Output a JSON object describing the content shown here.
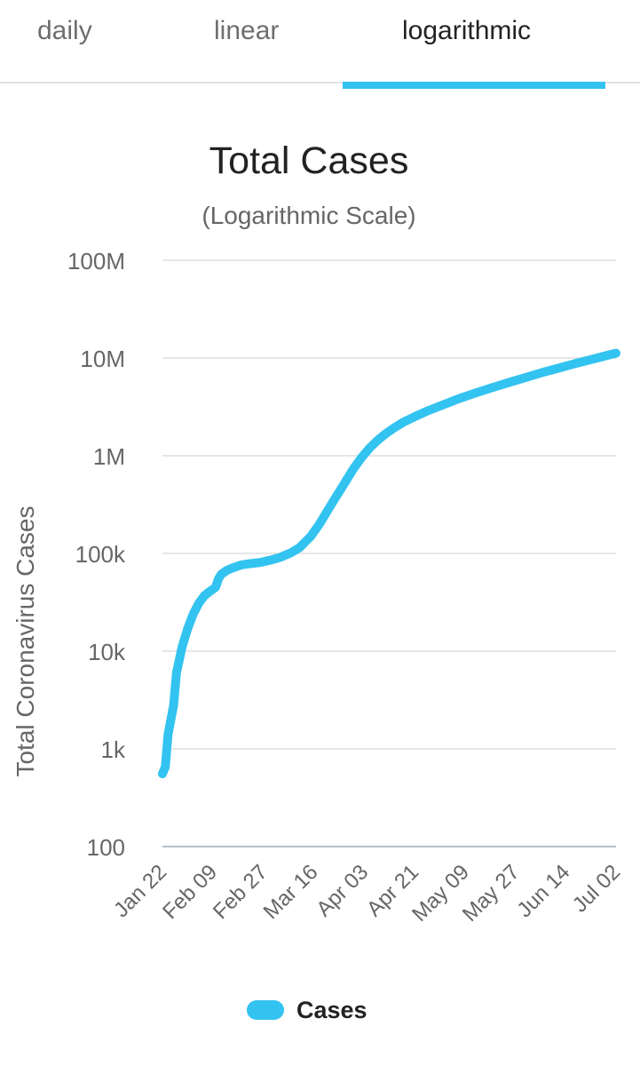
{
  "tabs": [
    {
      "label": "daily"
    },
    {
      "label": "linear"
    },
    {
      "label": "logarithmic"
    }
  ],
  "active_tab": "logarithmic",
  "colors": {
    "accent": "#33c3f0",
    "grid": "#dddddd",
    "text": "#222222",
    "muted": "#666666"
  },
  "chart_data": {
    "type": "line",
    "title": "Total Cases",
    "subtitle": "(Logarithmic Scale)",
    "ylabel": "Total Coronavirus Cases",
    "xlabel": "",
    "yscale": "log",
    "ylim": [
      100,
      100000000
    ],
    "y_ticks": [
      {
        "value": 100,
        "label": "100"
      },
      {
        "value": 1000,
        "label": "1k"
      },
      {
        "value": 10000,
        "label": "10k"
      },
      {
        "value": 100000,
        "label": "100k"
      },
      {
        "value": 1000000,
        "label": "1M"
      },
      {
        "value": 10000000,
        "label": "10M"
      },
      {
        "value": 100000000,
        "label": "100M"
      }
    ],
    "x_ticks": [
      {
        "day": 0,
        "label": "Jan 22"
      },
      {
        "day": 18,
        "label": "Feb 09"
      },
      {
        "day": 36,
        "label": "Feb 27"
      },
      {
        "day": 54,
        "label": "Mar 16"
      },
      {
        "day": 72,
        "label": "Apr 03"
      },
      {
        "day": 90,
        "label": "Apr 21"
      },
      {
        "day": 108,
        "label": "May 09"
      },
      {
        "day": 126,
        "label": "May 27"
      },
      {
        "day": 144,
        "label": "Jun 14"
      },
      {
        "day": 162,
        "label": "Jul 02"
      }
    ],
    "series": [
      {
        "name": "Cases",
        "color": "#33c3f0",
        "x": [
          0,
          1,
          2,
          4,
          5,
          7,
          9,
          11,
          13,
          15,
          17,
          18,
          19,
          20,
          21,
          23,
          25,
          28,
          31,
          35,
          39,
          42,
          46,
          49,
          53,
          56,
          59,
          62,
          65,
          68,
          71,
          74,
          77,
          80,
          83,
          86,
          90,
          95,
          100,
          106,
          112,
          118,
          124,
          130,
          136,
          142,
          148,
          154,
          160,
          162
        ],
        "values": [
          555,
          653,
          1400,
          2800,
          6000,
          11000,
          17000,
          24000,
          31000,
          37000,
          41000,
          43000,
          45000,
          55000,
          61000,
          67000,
          71000,
          76000,
          78500,
          81000,
          86000,
          91000,
          102000,
          115000,
          150000,
          198000,
          275000,
          380000,
          520000,
          720000,
          950000,
          1200000,
          1450000,
          1700000,
          1950000,
          2200000,
          2500000,
          2900000,
          3300000,
          3850000,
          4400000,
          5000000,
          5650000,
          6350000,
          7150000,
          7950000,
          8850000,
          9800000,
          10850000,
          11200000
        ]
      }
    ],
    "legend": [
      {
        "label": "Cases",
        "position": "bottom-center"
      }
    ]
  }
}
